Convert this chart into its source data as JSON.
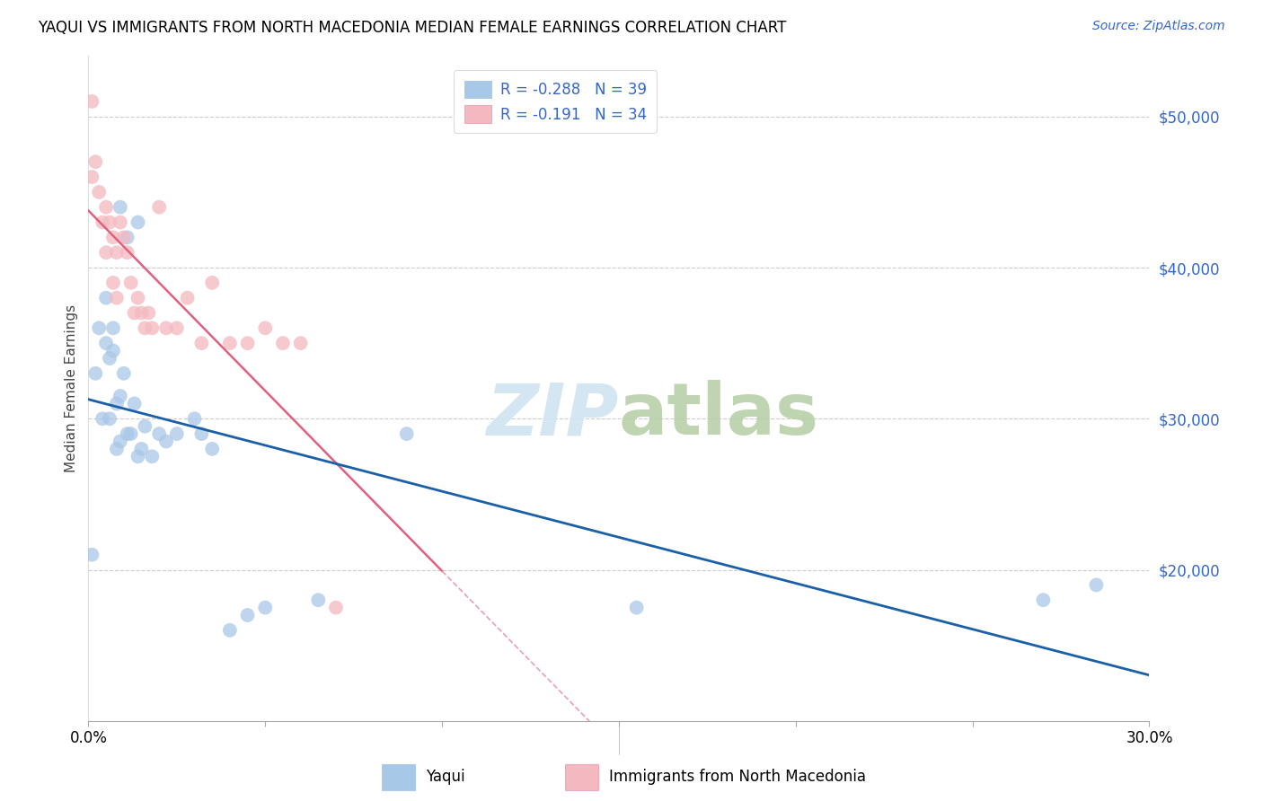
{
  "title": "YAQUI VS IMMIGRANTS FROM NORTH MACEDONIA MEDIAN FEMALE EARNINGS CORRELATION CHART",
  "source": "Source: ZipAtlas.com",
  "ylabel": "Median Female Earnings",
  "yticks": [
    20000,
    30000,
    40000,
    50000
  ],
  "ytick_labels": [
    "$20,000",
    "$30,000",
    "$40,000",
    "$50,000"
  ],
  "legend_label1": "Yaqui",
  "legend_label2": "Immigrants from North Macedonia",
  "r1": "-0.288",
  "n1": "39",
  "r2": "-0.191",
  "n2": "34",
  "xmin": 0.0,
  "xmax": 0.3,
  "ymin": 10000,
  "ymax": 54000,
  "blue_color": "#a8c8e8",
  "pink_color": "#f4b8c0",
  "blue_line_color": "#1a5fa8",
  "pink_line_color": "#e06080",
  "pink_dash_color": "#e8a0b0",
  "watermark_color": "#d0e4f0",
  "blue_x": [
    0.001,
    0.002,
    0.003,
    0.004,
    0.005,
    0.005,
    0.006,
    0.006,
    0.007,
    0.007,
    0.008,
    0.008,
    0.009,
    0.009,
    0.01,
    0.011,
    0.012,
    0.013,
    0.014,
    0.015,
    0.016,
    0.018,
    0.02,
    0.022,
    0.025,
    0.03,
    0.032,
    0.035,
    0.04,
    0.045,
    0.05,
    0.065,
    0.09,
    0.155,
    0.27,
    0.285,
    0.009,
    0.011,
    0.014
  ],
  "blue_y": [
    21000,
    33000,
    36000,
    30000,
    35000,
    38000,
    30000,
    34000,
    34500,
    36000,
    28000,
    31000,
    28500,
    31500,
    33000,
    29000,
    29000,
    31000,
    27500,
    28000,
    29500,
    27500,
    29000,
    28500,
    29000,
    30000,
    29000,
    28000,
    16000,
    17000,
    17500,
    18000,
    29000,
    17500,
    18000,
    19000,
    44000,
    42000,
    43000
  ],
  "pink_x": [
    0.001,
    0.002,
    0.003,
    0.004,
    0.005,
    0.005,
    0.006,
    0.007,
    0.007,
    0.008,
    0.008,
    0.009,
    0.01,
    0.011,
    0.012,
    0.013,
    0.014,
    0.015,
    0.016,
    0.017,
    0.018,
    0.02,
    0.022,
    0.025,
    0.028,
    0.032,
    0.035,
    0.04,
    0.045,
    0.05,
    0.055,
    0.06,
    0.07,
    0.001
  ],
  "pink_y": [
    51000,
    47000,
    45000,
    43000,
    44000,
    41000,
    43000,
    42000,
    39000,
    41000,
    38000,
    43000,
    42000,
    41000,
    39000,
    37000,
    38000,
    37000,
    36000,
    37000,
    36000,
    44000,
    36000,
    36000,
    38000,
    35000,
    39000,
    35000,
    35000,
    36000,
    35000,
    35000,
    17500,
    46000
  ],
  "pink_line_xmax": 0.1,
  "xtick_positions": [
    0.0,
    0.05,
    0.1,
    0.15,
    0.2,
    0.25,
    0.3
  ]
}
